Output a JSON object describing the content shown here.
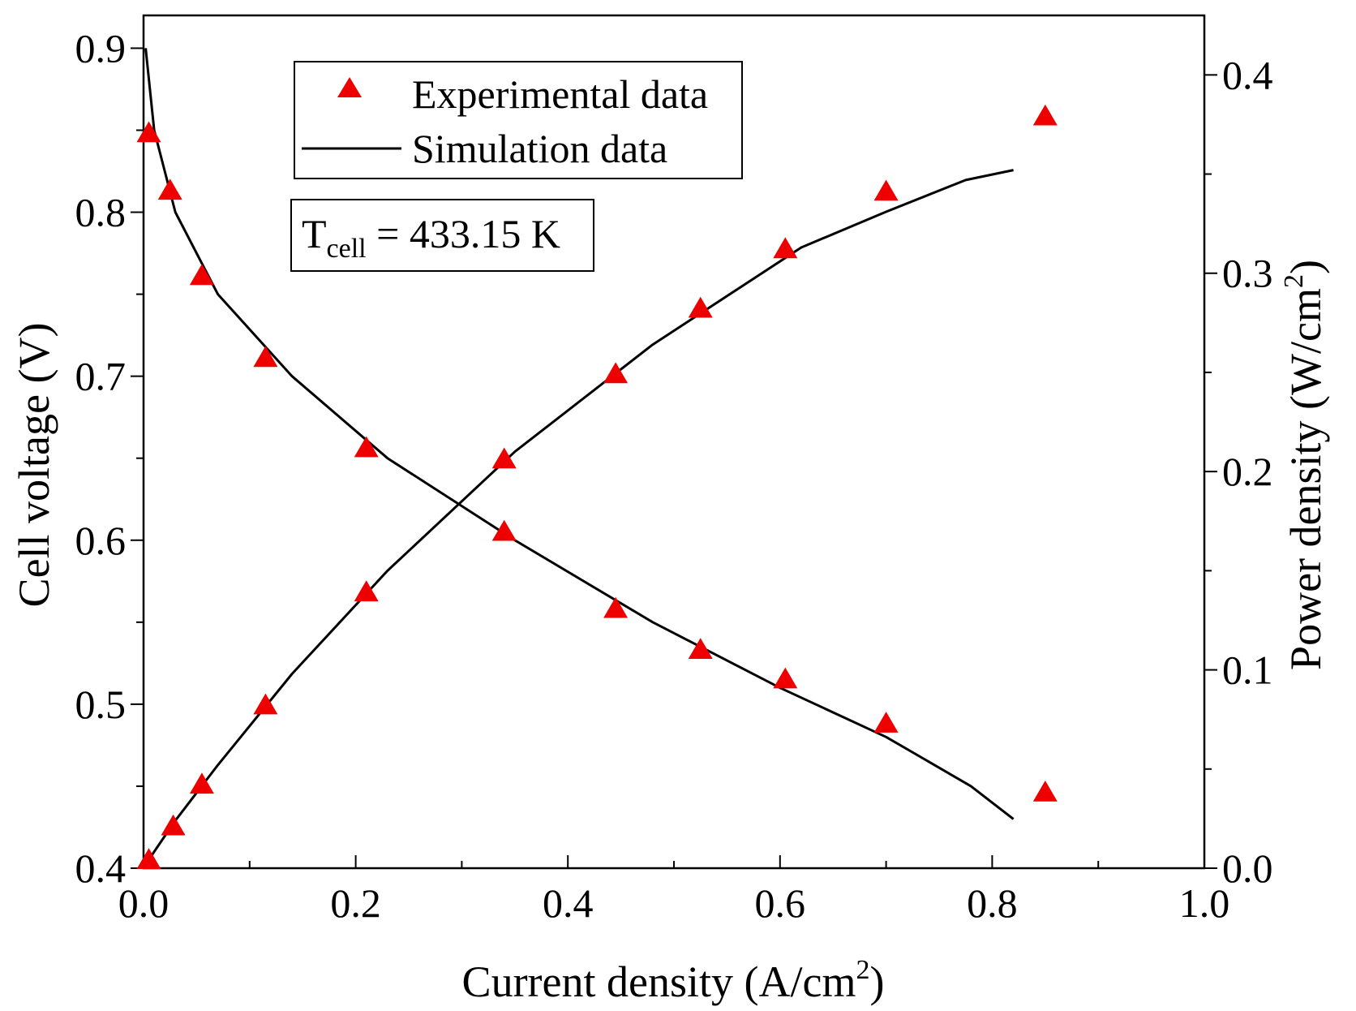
{
  "chart_data": {
    "type": "line+scatter",
    "dual_axis": true,
    "xlabel": "Current density (A/cm",
    "xlabel_sup": "2",
    "xlabel_end": ")",
    "ylabel_left": "Cell voltage (V)",
    "ylabel_right": "Power density (W/cm",
    "ylabel_right_sup": "2",
    "ylabel_right_end": ")",
    "xlim": [
      0.0,
      1.0
    ],
    "ylim_left": [
      0.4,
      0.92
    ],
    "ylim_right": [
      0.0,
      0.43
    ],
    "x_ticks": [
      "0.0",
      "0.2",
      "0.4",
      "0.6",
      "0.8",
      "1.0"
    ],
    "y_left_ticks": [
      "0.4",
      "0.5",
      "0.6",
      "0.7",
      "0.8",
      "0.9"
    ],
    "y_right_ticks": [
      "0.0",
      "0.1",
      "0.2",
      "0.3",
      "0.4"
    ],
    "annotation": {
      "main": "T",
      "sub": "cell",
      "rest": " = 433.15 K"
    },
    "legend": {
      "position": "top-left",
      "entries": [
        {
          "label": "Experimental data",
          "marker": "triangle",
          "color": "#ee0000"
        },
        {
          "label": "Simulation data",
          "marker": "line",
          "color": "#000000"
        }
      ]
    },
    "series": [
      {
        "name": "Experimental voltage",
        "axis": "left",
        "kind": "scatter",
        "color": "#ee0000",
        "x": [
          0.005,
          0.025,
          0.055,
          0.115,
          0.21,
          0.34,
          0.445,
          0.525,
          0.605,
          0.7,
          0.85
        ],
        "y": [
          0.848,
          0.813,
          0.761,
          0.711,
          0.656,
          0.605,
          0.558,
          0.533,
          0.515,
          0.488,
          0.446
        ]
      },
      {
        "name": "Experimental power",
        "axis": "right",
        "kind": "scatter",
        "color": "#ee0000",
        "x": [
          0.005,
          0.028,
          0.055,
          0.115,
          0.21,
          0.34,
          0.445,
          0.525,
          0.605,
          0.7,
          0.85
        ],
        "y": [
          0.004,
          0.021,
          0.042,
          0.082,
          0.139,
          0.206,
          0.249,
          0.282,
          0.312,
          0.341,
          0.379
        ]
      },
      {
        "name": "Simulated voltage",
        "axis": "left",
        "kind": "line",
        "color": "#000000",
        "x": [
          0.002,
          0.01,
          0.03,
          0.07,
          0.14,
          0.23,
          0.35,
          0.48,
          0.6,
          0.7,
          0.78,
          0.82
        ],
        "y": [
          0.9,
          0.85,
          0.8,
          0.75,
          0.7,
          0.65,
          0.6,
          0.55,
          0.51,
          0.48,
          0.45,
          0.43
        ]
      },
      {
        "name": "Simulated power",
        "axis": "right",
        "kind": "line",
        "color": "#000000",
        "x": [
          0.002,
          0.03,
          0.07,
          0.14,
          0.23,
          0.35,
          0.48,
          0.62,
          0.7,
          0.775,
          0.82
        ],
        "y": [
          0.002,
          0.024,
          0.052,
          0.098,
          0.15,
          0.21,
          0.264,
          0.313,
          0.331,
          0.347,
          0.352
        ]
      }
    ]
  }
}
